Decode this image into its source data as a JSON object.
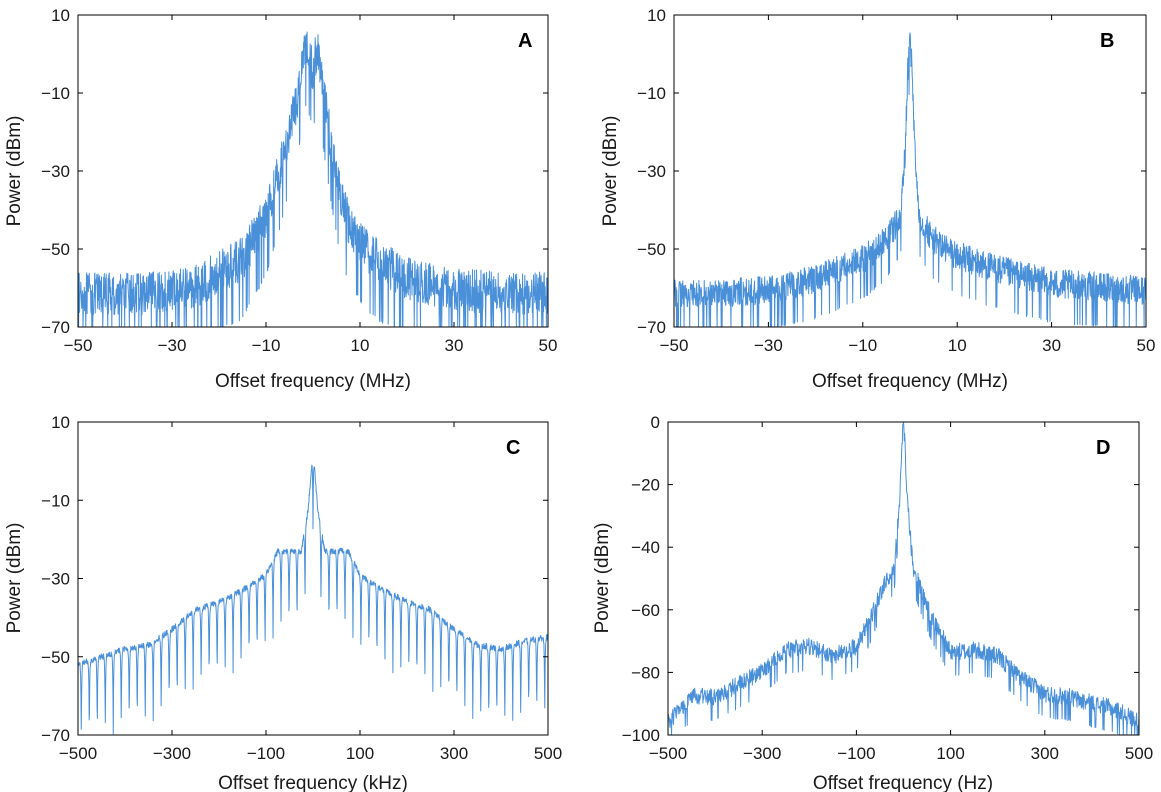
{
  "figure": {
    "background": "#ffffff",
    "line_color": "#4a90d9"
  },
  "chart_data": [
    {
      "panel": "A",
      "type": "line",
      "xlabel": "Offset frequency  (MHz)",
      "ylabel": "Power (dBm)",
      "xlim": [
        -50,
        50
      ],
      "ylim": [
        -70,
        10
      ],
      "xticks": [
        -50,
        -30,
        -10,
        10,
        30,
        50
      ],
      "yticks": [
        -70,
        -50,
        -30,
        -10,
        10
      ],
      "xtick_labels": [
        "−50",
        "−30",
        "−10",
        "10",
        "30",
        "50"
      ],
      "ytick_labels": [
        "−70",
        "−50",
        "−30",
        "−10",
        "10"
      ],
      "profile": [
        [
          -50,
          -62
        ],
        [
          -35,
          -62
        ],
        [
          -25,
          -60
        ],
        [
          -15,
          -53
        ],
        [
          -10,
          -42
        ],
        [
          -7,
          -30
        ],
        [
          -5,
          -20
        ],
        [
          -3,
          -10
        ],
        [
          -2,
          2
        ],
        [
          -1,
          0
        ],
        [
          0,
          -5
        ],
        [
          1,
          2
        ],
        [
          2,
          -8
        ],
        [
          4,
          -25
        ],
        [
          6,
          -38
        ],
        [
          8,
          -45
        ],
        [
          12,
          -52
        ],
        [
          20,
          -58
        ],
        [
          30,
          -61
        ],
        [
          50,
          -62
        ]
      ],
      "noise_dB": 6,
      "points": 1500
    },
    {
      "panel": "B",
      "type": "line",
      "xlabel": "Offset frequency  (MHz)",
      "ylabel": "Power (dBm)",
      "xlim": [
        -50,
        50
      ],
      "ylim": [
        -70,
        10
      ],
      "xticks": [
        -50,
        -30,
        -10,
        10,
        30,
        50
      ],
      "yticks": [
        -70,
        -50,
        -30,
        -10,
        10
      ],
      "xtick_labels": [
        "−50",
        "−30",
        "−10",
        "10",
        "30",
        "50"
      ],
      "ytick_labels": [
        "−70",
        "−50",
        "−30",
        "−10",
        "10"
      ],
      "profile": [
        [
          -50,
          -62
        ],
        [
          -30,
          -61
        ],
        [
          -20,
          -58
        ],
        [
          -10,
          -53
        ],
        [
          -5,
          -48
        ],
        [
          -2,
          -42
        ],
        [
          -1,
          -25
        ],
        [
          -0.5,
          -5
        ],
        [
          0,
          2
        ],
        [
          0.5,
          -5
        ],
        [
          1,
          -25
        ],
        [
          2,
          -42
        ],
        [
          5,
          -48
        ],
        [
          10,
          -52
        ],
        [
          20,
          -56
        ],
        [
          30,
          -59
        ],
        [
          50,
          -61
        ]
      ],
      "noise_dB": 4,
      "points": 1500
    },
    {
      "panel": "C",
      "type": "line",
      "xlabel": "Offset frequency  (kHz)",
      "ylabel": "Power (dBm)",
      "xlim": [
        -500,
        500
      ],
      "ylim": [
        -70,
        10
      ],
      "xticks": [
        -500,
        -300,
        -100,
        100,
        300,
        500
      ],
      "yticks": [
        -70,
        -50,
        -30,
        -10,
        10
      ],
      "xtick_labels": [
        "−500",
        "−300",
        "−100",
        "100",
        "300",
        "500"
      ],
      "ytick_labels": [
        "−70",
        "−50",
        "−30",
        "−10",
        "10"
      ],
      "profile": [
        [
          -500,
          -52
        ],
        [
          -450,
          -50
        ],
        [
          -400,
          -48
        ],
        [
          -350,
          -47
        ],
        [
          -300,
          -43
        ],
        [
          -250,
          -38
        ],
        [
          -200,
          -36
        ],
        [
          -150,
          -33
        ],
        [
          -100,
          -29
        ],
        [
          -75,
          -23
        ],
        [
          -25,
          -23
        ],
        [
          -10,
          -12
        ],
        [
          0,
          3
        ],
        [
          10,
          -12
        ],
        [
          25,
          -23
        ],
        [
          75,
          -23
        ],
        [
          100,
          -29
        ],
        [
          150,
          -33
        ],
        [
          200,
          -36
        ],
        [
          250,
          -38
        ],
        [
          300,
          -43
        ],
        [
          350,
          -47
        ],
        [
          400,
          -48
        ],
        [
          450,
          -46
        ],
        [
          500,
          -45
        ]
      ],
      "ripple_period": 17,
      "ripple_depth": 20,
      "points": 1600
    },
    {
      "panel": "D",
      "type": "line",
      "xlabel": "Offset frequency  (Hz)",
      "ylabel": "Power (dBm)",
      "xlim": [
        -500,
        500
      ],
      "ylim": [
        -100,
        0
      ],
      "xticks": [
        -500,
        -300,
        -100,
        100,
        300,
        500
      ],
      "yticks": [
        -100,
        -80,
        -60,
        -40,
        -20,
        0
      ],
      "xtick_labels": [
        "−500",
        "−300",
        "−100",
        "100",
        "300",
        "500"
      ],
      "ytick_labels": [
        "−100",
        "−80",
        "−60",
        "−40",
        "−20",
        "0"
      ],
      "profile": [
        [
          -500,
          -96
        ],
        [
          -450,
          -88
        ],
        [
          -400,
          -88
        ],
        [
          -350,
          -84
        ],
        [
          -300,
          -80
        ],
        [
          -250,
          -73
        ],
        [
          -200,
          -72
        ],
        [
          -150,
          -75
        ],
        [
          -100,
          -72
        ],
        [
          -70,
          -63
        ],
        [
          -40,
          -52
        ],
        [
          -20,
          -47
        ],
        [
          -8,
          -25
        ],
        [
          0,
          2
        ],
        [
          8,
          -25
        ],
        [
          20,
          -47
        ],
        [
          40,
          -55
        ],
        [
          60,
          -63
        ],
        [
          80,
          -68
        ],
        [
          100,
          -74
        ],
        [
          150,
          -73
        ],
        [
          200,
          -75
        ],
        [
          250,
          -82
        ],
        [
          300,
          -87
        ],
        [
          350,
          -88
        ],
        [
          400,
          -90
        ],
        [
          450,
          -92
        ],
        [
          500,
          -96
        ]
      ],
      "noise_dB": 3,
      "points": 1200
    }
  ]
}
